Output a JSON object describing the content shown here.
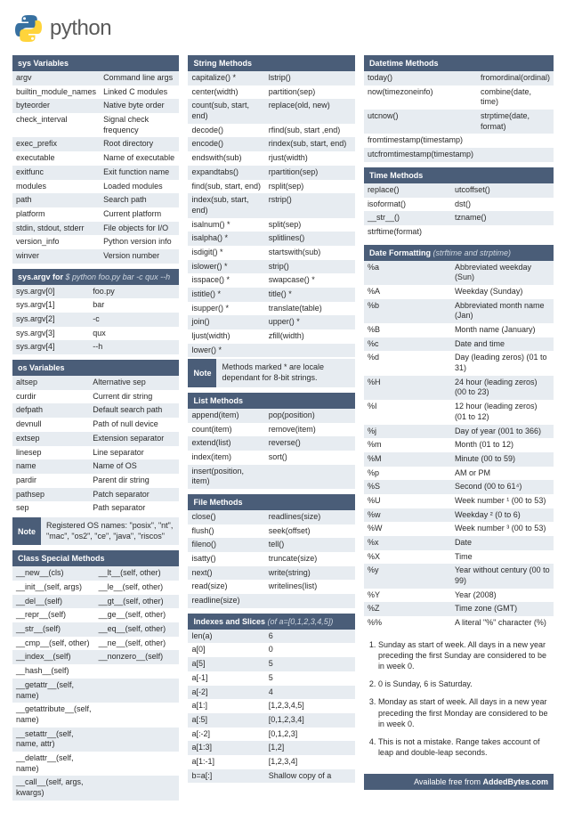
{
  "brand": "python",
  "colors": {
    "header": "#4a5d78",
    "stripe": "#e7ecf1",
    "text": "#2a2a2a",
    "brandText": "#5a5a5a"
  },
  "col1": {
    "sysVars": {
      "title": "sys Variables",
      "rows": [
        [
          "argv",
          "Command line args"
        ],
        [
          "builtin_module_names",
          "Linked C modules"
        ],
        [
          "byteorder",
          "Native byte order"
        ],
        [
          "check_interval",
          "Signal check frequency"
        ],
        [
          "exec_prefix",
          "Root directory"
        ],
        [
          "executable",
          "Name of executable"
        ],
        [
          "exitfunc",
          "Exit function name"
        ],
        [
          "modules",
          "Loaded modules"
        ],
        [
          "path",
          "Search path"
        ],
        [
          "platform",
          "Current platform"
        ],
        [
          "stdin, stdout, stderr",
          "File objects for I/O"
        ],
        [
          "version_info",
          "Python version info"
        ],
        [
          "winver",
          "Version number"
        ]
      ]
    },
    "sysArgv": {
      "titlePrefix": "sys.argv",
      "titleMid": " for ",
      "titleCmd": "$ python foo.py bar -c qux --h",
      "rows": [
        [
          "sys.argv[0]",
          "foo.py"
        ],
        [
          "sys.argv[1]",
          "bar"
        ],
        [
          "sys.argv[2]",
          "-c"
        ],
        [
          "sys.argv[3]",
          "qux"
        ],
        [
          "sys.argv[4]",
          "--h"
        ]
      ]
    },
    "osVars": {
      "title": "os Variables",
      "rows": [
        [
          "altsep",
          "Alternative sep"
        ],
        [
          "curdir",
          "Current dir string"
        ],
        [
          "defpath",
          "Default search path"
        ],
        [
          "devnull",
          "Path of null device"
        ],
        [
          "extsep",
          "Extension separator"
        ],
        [
          "linesep",
          "Line separator"
        ],
        [
          "name",
          "Name of OS"
        ],
        [
          "pardir",
          "Parent dir string"
        ],
        [
          "pathsep",
          "Patch separator"
        ],
        [
          "sep",
          "Path separator"
        ]
      ],
      "noteLabel": "Note",
      "noteText": "Registered OS names: \"posix\", \"nt\", \"mac\", \"os2\", \"ce\", \"java\", \"riscos\""
    },
    "classSpecial": {
      "title": "Class Special Methods",
      "rows": [
        [
          "__new__(cls)",
          "__lt__(self, other)"
        ],
        [
          "__init__(self, args)",
          "__le__(self, other)"
        ],
        [
          "__del__(self)",
          "__gt__(self, other)"
        ],
        [
          "__repr__(self)",
          "__ge__(self, other)"
        ],
        [
          "__str__(self)",
          "__eq__(self, other)"
        ],
        [
          "__cmp__(self, other)",
          "__ne__(self, other)"
        ],
        [
          "__index__(self)",
          "__nonzero__(self)"
        ],
        [
          "__hash__(self)",
          ""
        ],
        [
          "__getattr__(self, name)",
          ""
        ],
        [
          "__getattribute__(self, name)",
          ""
        ],
        [
          "__setattr__(self, name, attr)",
          ""
        ],
        [
          "__delattr__(self, name)",
          ""
        ],
        [
          "__call__(self, args, kwargs)",
          ""
        ]
      ]
    }
  },
  "col2": {
    "stringMethods": {
      "title": "String Methods",
      "rows": [
        [
          "capitalize() *",
          "lstrip()"
        ],
        [
          "center(width)",
          "partition(sep)"
        ],
        [
          "count(sub, start, end)",
          "replace(old, new)"
        ],
        [
          "decode()",
          "rfind(sub, start ,end)"
        ],
        [
          "encode()",
          "rindex(sub, start, end)"
        ],
        [
          "endswith(sub)",
          "rjust(width)"
        ],
        [
          "expandtabs()",
          "rpartition(sep)"
        ],
        [
          "find(sub, start, end)",
          "rsplit(sep)"
        ],
        [
          "index(sub, start, end)",
          "rstrip()"
        ],
        [
          "isalnum() *",
          "split(sep)"
        ],
        [
          "isalpha() *",
          "splitlines()"
        ],
        [
          "isdigit() *",
          "startswith(sub)"
        ],
        [
          "islower() *",
          "strip()"
        ],
        [
          "isspace() *",
          "swapcase() *"
        ],
        [
          "istitle() *",
          "title() *"
        ],
        [
          "isupper() *",
          "translate(table)"
        ],
        [
          "join()",
          "upper() *"
        ],
        [
          "ljust(width)",
          "zfill(width)"
        ],
        [
          "lower() *",
          ""
        ]
      ],
      "noteLabel": "Note",
      "noteText": "Methods marked * are locale dependant for 8-bit strings."
    },
    "listMethods": {
      "title": "List Methods",
      "rows": [
        [
          "append(item)",
          "pop(position)"
        ],
        [
          "count(item)",
          "remove(item)"
        ],
        [
          "extend(list)",
          "reverse()"
        ],
        [
          "index(item)",
          "sort()"
        ],
        [
          "insert(position, item)",
          ""
        ]
      ]
    },
    "fileMethods": {
      "title": "File Methods",
      "rows": [
        [
          "close()",
          "readlines(size)"
        ],
        [
          "flush()",
          "seek(offset)"
        ],
        [
          "fileno()",
          "tell()"
        ],
        [
          "isatty()",
          "truncate(size)"
        ],
        [
          "next()",
          "write(string)"
        ],
        [
          "read(size)",
          "writelines(list)"
        ],
        [
          "readline(size)",
          ""
        ]
      ]
    },
    "indexes": {
      "titlePrefix": "Indexes and Slices",
      "titleSub": " (of a=[0,1,2,3,4,5])",
      "rows": [
        [
          "len(a)",
          "6"
        ],
        [
          "a[0]",
          "0"
        ],
        [
          "a[5]",
          "5"
        ],
        [
          "a[-1]",
          "5"
        ],
        [
          "a[-2]",
          "4"
        ],
        [
          "a[1:]",
          "[1,2,3,4,5]"
        ],
        [
          "a[:5]",
          "[0,1,2,3,4]"
        ],
        [
          "a[:-2]",
          "[0,1,2,3]"
        ],
        [
          "a[1:3]",
          "[1,2]"
        ],
        [
          "a[1:-1]",
          "[1,2,3,4]"
        ],
        [
          "b=a[:]",
          "Shallow copy of a"
        ]
      ]
    }
  },
  "col3": {
    "datetimeMethods": {
      "title": "Datetime Methods",
      "rows": [
        [
          "today()",
          "fromordinal(ordinal)"
        ],
        [
          "now(timezoneinfo)",
          "combine(date, time)"
        ],
        [
          "utcnow()",
          "strptime(date, format)"
        ],
        [
          "fromtimestamp(timestamp)",
          ""
        ],
        [
          "utcfromtimestamp(timestamp)",
          ""
        ]
      ]
    },
    "timeMethods": {
      "title": "Time Methods",
      "rows": [
        [
          "replace()",
          "utcoffset()"
        ],
        [
          "isoformat()",
          "dst()"
        ],
        [
          "__str__()",
          "tzname()"
        ],
        [
          "strftime(format)",
          ""
        ]
      ]
    },
    "dateFmt": {
      "titlePrefix": "Date Formatting",
      "titleSub": " (strftime and strptime)",
      "rows": [
        [
          "%a",
          "Abbreviated weekday (Sun)"
        ],
        [
          "%A",
          "Weekday (Sunday)"
        ],
        [
          "%b",
          "Abbreviated month name (Jan)"
        ],
        [
          "%B",
          "Month name (January)"
        ],
        [
          "%c",
          "Date and time"
        ],
        [
          "%d",
          "Day (leading zeros) (01 to 31)"
        ],
        [
          "%H",
          "24 hour (leading zeros) (00 to 23)"
        ],
        [
          "%I",
          "12 hour (leading zeros) (01 to 12)"
        ],
        [
          "%j",
          "Day of year (001 to 366)"
        ],
        [
          "%m",
          "Month (01 to 12)"
        ],
        [
          "%M",
          "Minute (00 to 59)"
        ],
        [
          "%p",
          "AM or PM"
        ],
        [
          "%S",
          "Second (00 to 61⁴)"
        ],
        [
          "%U",
          "Week number ¹ (00 to 53)"
        ],
        [
          "%w",
          "Weekday ² (0 to 6)"
        ],
        [
          "%W",
          "Week number ³ (00 to 53)"
        ],
        [
          "%x",
          "Date"
        ],
        [
          "%X",
          "Time"
        ],
        [
          "%y",
          "Year without century (00 to 99)"
        ],
        [
          "%Y",
          "Year (2008)"
        ],
        [
          "%Z",
          "Time zone (GMT)"
        ],
        [
          "%%",
          "A literal \"%\" character (%)"
        ]
      ]
    },
    "footnotes": [
      "Sunday as start of week. All days in a new year preceding the first Sunday are considered to be in week 0.",
      "0 is Sunday, 6 is Saturday.",
      "Monday as start of week. All days in a new year preceding the first Monday are considered to be in week 0.",
      "This is not a mistake. Range takes account of leap and double-leap seconds."
    ],
    "footer": {
      "text": "Available free from ",
      "site": "AddedBytes.com"
    }
  }
}
